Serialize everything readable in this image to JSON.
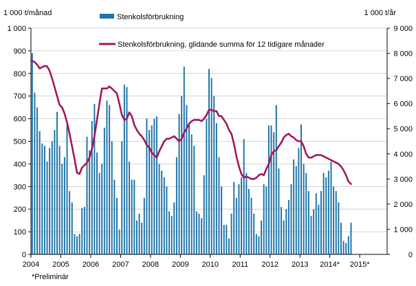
{
  "chart_data": {
    "type": "bar+line",
    "left_axis_unit": "1 000 t/månad",
    "right_axis_unit": "1 000 t/år",
    "left_ylim": [
      0,
      1000
    ],
    "right_ylim": [
      0,
      9000
    ],
    "left_ticks": [
      "0",
      "100",
      "200",
      "300",
      "400",
      "500",
      "600",
      "700",
      "800",
      "900",
      "1 000"
    ],
    "right_ticks": [
      "0",
      "1 000",
      "2 000",
      "3 000",
      "4 000",
      "5 000",
      "6 000",
      "7 000",
      "8 000",
      "9 000"
    ],
    "x_labels": [
      "2004",
      "2005",
      "2006",
      "2007",
      "2008",
      "2009",
      "2010",
      "2011",
      "2012",
      "2013",
      "2014*",
      "2015*"
    ],
    "start": "2004-01",
    "footnote": "*Preliminär",
    "grid": "horizontal",
    "legend_position": "top",
    "series": [
      {
        "name": "Stenkolsförbrukning",
        "kind": "bar",
        "axis": "left",
        "color": "#1f75a8",
        "values": [
          890,
          715,
          650,
          545,
          490,
          480,
          410,
          470,
          500,
          550,
          630,
          480,
          400,
          430,
          570,
          280,
          230,
          90,
          80,
          90,
          205,
          210,
          520,
          460,
          590,
          665,
          450,
          360,
          400,
          560,
          680,
          660,
          500,
          330,
          250,
          110,
          500,
          750,
          740,
          410,
          330,
          330,
          150,
          180,
          140,
          250,
          600,
          550,
          570,
          600,
          610,
          400,
          370,
          340,
          300,
          190,
          170,
          230,
          430,
          620,
          700,
          830,
          660,
          580,
          530,
          480,
          190,
          180,
          160,
          350,
          600,
          820,
          780,
          700,
          580,
          430,
          300,
          130,
          130,
          70,
          180,
          320,
          250,
          310,
          340,
          510,
          360,
          290,
          250,
          180,
          90,
          80,
          150,
          310,
          300,
          570,
          570,
          540,
          660,
          380,
          210,
          150,
          200,
          240,
          310,
          420,
          390,
          470,
          575,
          400,
          360,
          280,
          170,
          200,
          270,
          220,
          280,
          360,
          340,
          370,
          410,
          300,
          280,
          230,
          140,
          60,
          50,
          80,
          140
        ]
      },
      {
        "name": "Stenkolsförbrukning, glidande summa för 12 tidigare månader",
        "kind": "line",
        "axis": "right",
        "color": "#a0175a",
        "values": [
          7700,
          7650,
          7550,
          7400,
          7450,
          7500,
          7480,
          7300,
          7000,
          6650,
          6300,
          5950,
          5850,
          5600,
          5250,
          4800,
          4300,
          3800,
          3250,
          3200,
          3450,
          3550,
          3650,
          3850,
          4200,
          4700,
          5350,
          6000,
          6600,
          6600,
          6600,
          6680,
          6600,
          6500,
          6400,
          6000,
          5550,
          5350,
          5400,
          5650,
          5500,
          5150,
          4950,
          4800,
          4700,
          4550,
          4350,
          4250,
          4050,
          3950,
          3850,
          4100,
          4300,
          4500,
          4600,
          4600,
          4650,
          4700,
          4600,
          4500,
          4600,
          4850,
          5000,
          5200,
          5300,
          5350,
          5350,
          5350,
          5300,
          5400,
          5550,
          5750,
          5750,
          5700,
          5700,
          5500,
          5500,
          5350,
          5200,
          4950,
          4800,
          4400,
          3900,
          3500,
          3200,
          3050,
          3100,
          3050,
          3000,
          3000,
          3050,
          3150,
          3200,
          3150,
          3400,
          3600,
          3950,
          4100,
          4150,
          4300,
          4450,
          4650,
          4750,
          4800,
          4700,
          4650,
          4550,
          4500,
          4500,
          4300,
          4000,
          3850,
          3850,
          3900,
          3950,
          3950,
          3950,
          3900,
          3850,
          3800,
          3750,
          3700,
          3650,
          3600,
          3500,
          3350,
          3150,
          2900,
          2800
        ]
      }
    ]
  }
}
